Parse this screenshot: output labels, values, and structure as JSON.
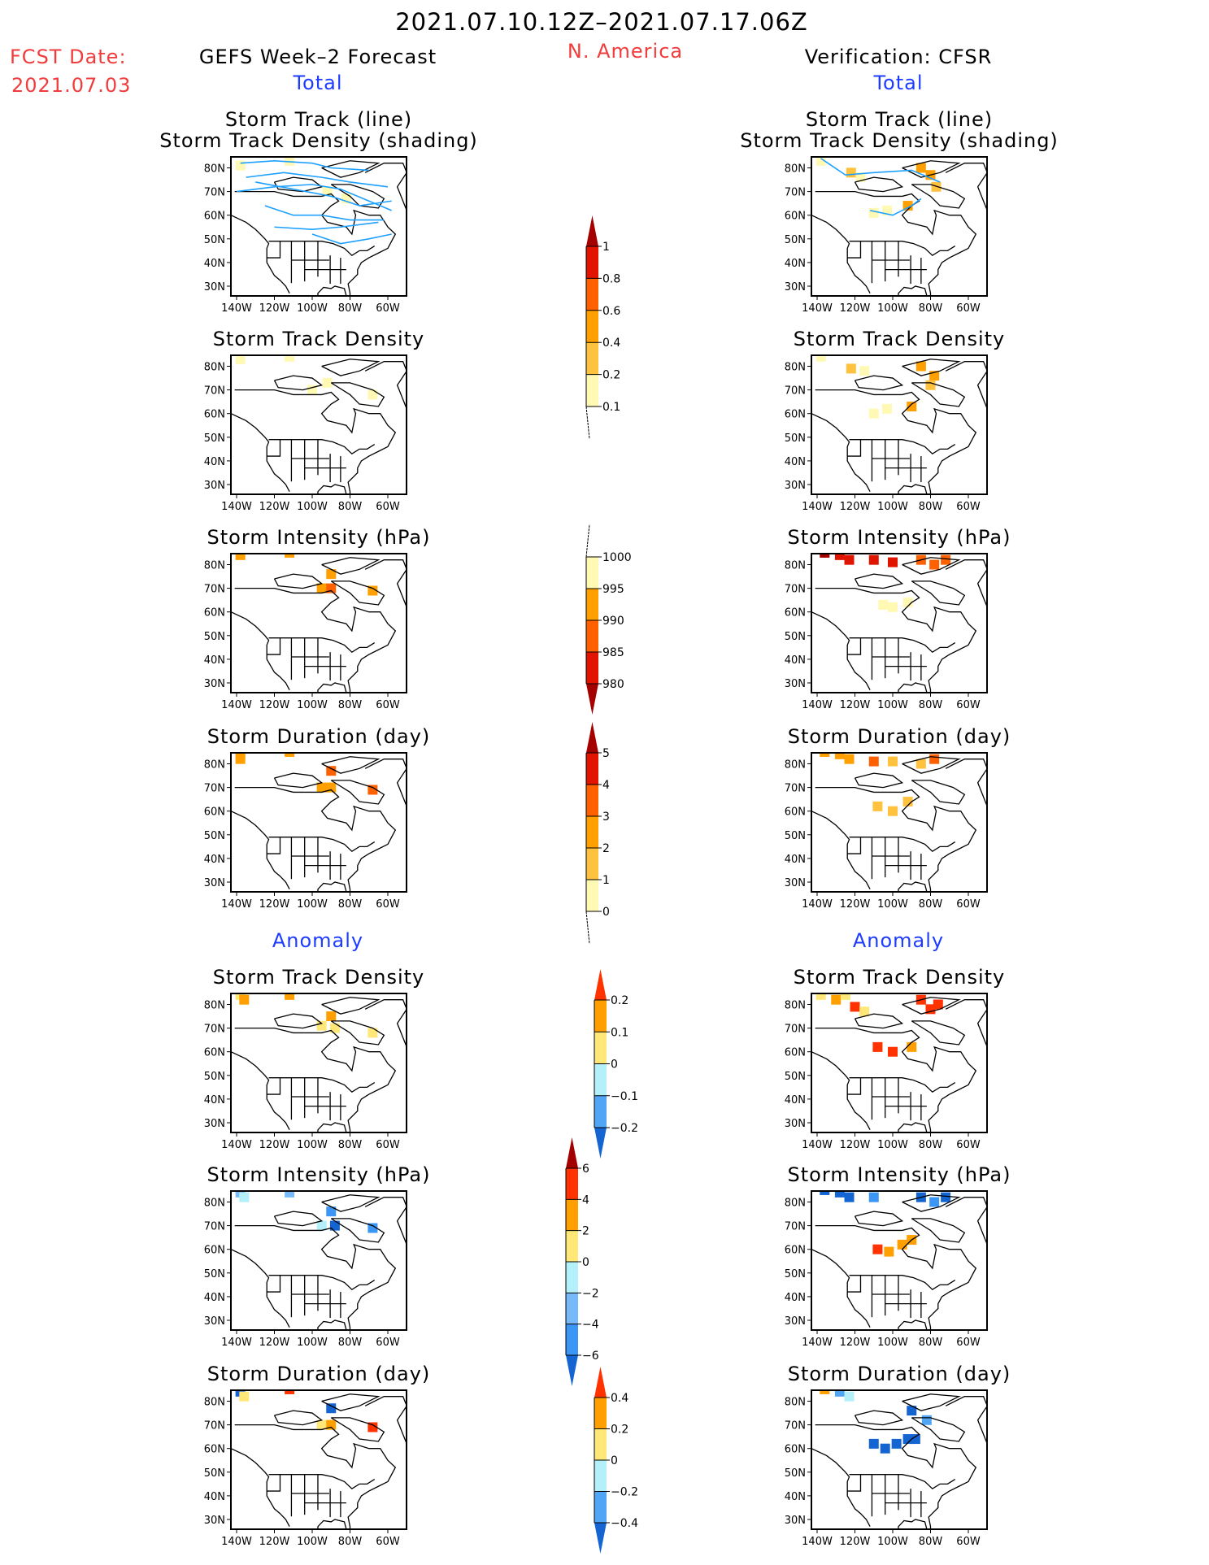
{
  "header": {
    "period": "2021.07.10.12Z–2021.07.17.06Z",
    "fcst_label": "FCST Date:",
    "fcst_date": "2021.07.03",
    "left_title": "GEFS Week–2 Forecast",
    "region": "N. America",
    "right_title": "Verification: CFSR",
    "total": "Total",
    "anomaly": "Anomaly"
  },
  "axes": {
    "lat_ticks": [
      "80N",
      "70N",
      "60N",
      "50N",
      "40N",
      "30N"
    ],
    "lat_values": [
      80,
      70,
      60,
      50,
      40,
      30
    ],
    "lon_ticks": [
      "140W",
      "120W",
      "100W",
      "80W",
      "60W"
    ],
    "lon_values": [
      -140,
      -120,
      -100,
      -80,
      -60
    ]
  },
  "chart_data": {
    "type": "heatmap",
    "colorbars": [
      {
        "name": "total-density",
        "labels": [
          "1",
          "0.8",
          "0.6",
          "0.4",
          "0.2",
          "0.1"
        ],
        "colors": [
          "#a50000",
          "#e11400",
          "#ff6000",
          "#ffa000",
          "#ffc23f",
          "#fff9b4"
        ],
        "top": "tri",
        "bottom": "tail"
      },
      {
        "name": "intensity",
        "labels": [
          "1000",
          "995",
          "990",
          "985",
          "980"
        ],
        "colors": [
          "#fff9b4",
          "#ffa000",
          "#ff6000",
          "#e11400",
          "#a50000"
        ],
        "top": "tail",
        "bottom": "tri"
      },
      {
        "name": "duration",
        "labels": [
          "5",
          "4",
          "3",
          "2",
          "1",
          "0"
        ],
        "colors": [
          "#a50000",
          "#e11400",
          "#ff6000",
          "#ffa000",
          "#ffc23f",
          "#fff9b4"
        ],
        "top": "tri",
        "bottom": "tail"
      },
      {
        "name": "anom-density",
        "labels": [
          "0.2",
          "0.1",
          "0",
          "−0.1",
          "−0.2"
        ],
        "colors": [
          "#ff3200",
          "#ffa000",
          "#ffe878",
          "#b4f0fa",
          "#50a5f5",
          "#1464d2"
        ],
        "top": "tri",
        "bottom": "tri"
      },
      {
        "name": "anom-intensity",
        "labels": [
          "6",
          "4",
          "2",
          "0",
          "−2",
          "−4",
          "−6"
        ],
        "colors": [
          "#a50000",
          "#ff3200",
          "#ffa000",
          "#ffe878",
          "#b4f0fa",
          "#78b9fa",
          "#3c96f5",
          "#1464d2"
        ],
        "top": "tri",
        "bottom": "tri"
      },
      {
        "name": "anom-duration",
        "labels": [
          "0.4",
          "0.2",
          "0",
          "−0.2",
          "−0.4"
        ],
        "colors": [
          "#ff3200",
          "#ffa000",
          "#ffe878",
          "#b4f0fa",
          "#50a5f5",
          "#1464d2"
        ],
        "top": "tri",
        "bottom": "tri"
      }
    ],
    "panels": [
      {
        "title": [
          "Storm Track (line)",
          "Storm Track Density (shading)"
        ],
        "scale": 0,
        "left": {
          "cells": [
            [
              -138,
              81,
              5
            ],
            [
              -112,
              83,
              5
            ],
            [
              -92,
              70,
              5
            ],
            [
              -82,
              67,
              5
            ]
          ],
          "tracks": [
            [
              [
                -138,
                82
              ],
              [
                -120,
                83
              ],
              [
                -100,
                82
              ],
              [
                -90,
                80
              ],
              [
                -70,
                79
              ]
            ],
            [
              [
                -140,
                70
              ],
              [
                -120,
                72
              ],
              [
                -100,
                73
              ],
              [
                -85,
                71
              ],
              [
                -70,
                66
              ],
              [
                -58,
                62
              ]
            ],
            [
              [
                -135,
                76
              ],
              [
                -115,
                78
              ],
              [
                -95,
                76
              ],
              [
                -80,
                74
              ],
              [
                -60,
                72
              ]
            ],
            [
              [
                -125,
                64
              ],
              [
                -110,
                60
              ],
              [
                -95,
                60
              ],
              [
                -80,
                58
              ],
              [
                -62,
                58
              ]
            ],
            [
              [
                -120,
                55
              ],
              [
                -100,
                54
              ],
              [
                -85,
                55
              ],
              [
                -65,
                57
              ]
            ],
            [
              [
                -130,
                74
              ],
              [
                -110,
                71
              ],
              [
                -90,
                68
              ],
              [
                -75,
                64
              ],
              [
                -58,
                66
              ]
            ],
            [
              [
                -100,
                52
              ],
              [
                -85,
                48
              ],
              [
                -70,
                50
              ],
              [
                -58,
                52
              ]
            ]
          ]
        },
        "right": {
          "cells": [
            [
              -138,
              83,
              5
            ],
            [
              -122,
              78,
              4
            ],
            [
              -117,
              76,
              5
            ],
            [
              -85,
              80,
              3
            ],
            [
              -80,
              77,
              3
            ],
            [
              -77,
              72,
              4
            ],
            [
              -92,
              64,
              3
            ],
            [
              -103,
              62,
              5
            ],
            [
              -110,
              61,
              5
            ]
          ],
          "tracks": [
            [
              [
                -138,
                84
              ],
              [
                -125,
                77
              ],
              [
                -110,
                78
              ],
              [
                -90,
                79
              ],
              [
                -75,
                74
              ]
            ],
            [
              [
                -112,
                62
              ],
              [
                -100,
                60
              ],
              [
                -90,
                64
              ],
              [
                -85,
                67
              ]
            ]
          ]
        }
      },
      {
        "title": [
          "Storm Track Density"
        ],
        "scale": 0,
        "left": {
          "cells": [
            [
              -138,
              83,
              5
            ],
            [
              -112,
              84,
              5
            ],
            [
              -92,
              73,
              5
            ],
            [
              -68,
              68,
              5
            ],
            [
              -100,
              70,
              5
            ]
          ]
        },
        "right": {
          "cells": [
            [
              -138,
              84,
              5
            ],
            [
              -122,
              79,
              4
            ],
            [
              -115,
              78,
              5
            ],
            [
              -85,
              80,
              3
            ],
            [
              -78,
              76,
              3
            ],
            [
              -80,
              72,
              4
            ],
            [
              -90,
              63,
              3
            ],
            [
              -103,
              62,
              5
            ],
            [
              -110,
              60,
              5
            ]
          ]
        }
      },
      {
        "title": [
          "Storm Intensity (hPa)"
        ],
        "scale": 1,
        "left": {
          "cells": [
            [
              -138,
              84,
              1
            ],
            [
              -112,
              85,
              1
            ],
            [
              -90,
              76,
              1
            ],
            [
              -95,
              70,
              1
            ],
            [
              -90,
              70,
              2
            ],
            [
              -68,
              69,
              1
            ]
          ]
        },
        "right": {
          "cells": [
            [
              -136,
              85,
              4
            ],
            [
              -128,
              84,
              3
            ],
            [
              -123,
              82,
              3
            ],
            [
              -110,
              82,
              3
            ],
            [
              -100,
              81,
              3
            ],
            [
              -85,
              82,
              2
            ],
            [
              -78,
              80,
              2
            ],
            [
              -72,
              82,
              2
            ],
            [
              -105,
              63,
              0
            ],
            [
              -100,
              62,
              0
            ],
            [
              -92,
              64,
              0
            ]
          ]
        }
      },
      {
        "title": [
          "Storm Duration (day)"
        ],
        "scale": 2,
        "left": {
          "cells": [
            [
              -138,
              84,
              3
            ],
            [
              -138,
              82,
              3
            ],
            [
              -112,
              85,
              3
            ],
            [
              -90,
              77,
              2
            ],
            [
              -95,
              70,
              3
            ],
            [
              -90,
              70,
              3
            ],
            [
              -68,
              69,
              2
            ]
          ]
        },
        "right": {
          "cells": [
            [
              -136,
              85,
              3
            ],
            [
              -128,
              84,
              3
            ],
            [
              -123,
              82,
              3
            ],
            [
              -110,
              81,
              2
            ],
            [
              -100,
              81,
              4
            ],
            [
              -85,
              80,
              4
            ],
            [
              -78,
              82,
              2
            ],
            [
              -108,
              62,
              4
            ],
            [
              -100,
              60,
              4
            ],
            [
              -92,
              64,
              4
            ]
          ]
        }
      },
      {
        "title": [
          "Storm Track Density"
        ],
        "scale": 3,
        "left": {
          "cells": [
            [
              -138,
              84,
              2
            ],
            [
              -136,
              82,
              1
            ],
            [
              -112,
              84,
              1
            ],
            [
              -95,
              71,
              2
            ],
            [
              -90,
              75,
              1
            ],
            [
              -88,
              70,
              2
            ],
            [
              -68,
              68,
              2
            ]
          ]
        },
        "right": {
          "cells": [
            [
              -138,
              84,
              2
            ],
            [
              -130,
              82,
              1
            ],
            [
              -120,
              79,
              0
            ],
            [
              -115,
              77,
              2
            ],
            [
              -85,
              82,
              0
            ],
            [
              -80,
              78,
              0
            ],
            [
              -76,
              80,
              0
            ],
            [
              -90,
              62,
              1
            ],
            [
              -100,
              60,
              0
            ],
            [
              -108,
              62,
              0
            ],
            [
              -125,
              84,
              2
            ]
          ]
        }
      },
      {
        "title": [
          "Storm Intensity (hPa)"
        ],
        "scale": 4,
        "left": {
          "cells": [
            [
              -138,
              84,
              5
            ],
            [
              -136,
              82,
              4
            ],
            [
              -112,
              84,
              5
            ],
            [
              -90,
              76,
              6
            ],
            [
              -95,
              70,
              4
            ],
            [
              -88,
              70,
              7
            ],
            [
              -68,
              69,
              6
            ]
          ]
        },
        "right": {
          "cells": [
            [
              -136,
              85,
              7
            ],
            [
              -128,
              84,
              7
            ],
            [
              -123,
              82,
              7
            ],
            [
              -110,
              82,
              6
            ],
            [
              -85,
              82,
              7
            ],
            [
              -78,
              80,
              6
            ],
            [
              -72,
              82,
              7
            ],
            [
              -108,
              60,
              1
            ],
            [
              -102,
              59,
              2
            ],
            [
              -95,
              62,
              2
            ],
            [
              -90,
              64,
              2
            ]
          ]
        }
      },
      {
        "title": [
          "Storm Duration (day)"
        ],
        "scale": 5,
        "left": {
          "cells": [
            [
              -138,
              84,
              5
            ],
            [
              -136,
              82,
              2
            ],
            [
              -112,
              85,
              0
            ],
            [
              -90,
              77,
              5
            ],
            [
              -95,
              70,
              2
            ],
            [
              -90,
              70,
              1
            ],
            [
              -68,
              69,
              0
            ]
          ]
        },
        "right": {
          "cells": [
            [
              -136,
              85,
              1
            ],
            [
              -128,
              84,
              4
            ],
            [
              -123,
              82,
              3
            ],
            [
              -90,
              76,
              5
            ],
            [
              -82,
              72,
              4
            ],
            [
              -110,
              62,
              5
            ],
            [
              -104,
              60,
              5
            ],
            [
              -98,
              62,
              5
            ],
            [
              -92,
              64,
              5
            ],
            [
              -88,
              64,
              5
            ]
          ]
        }
      }
    ]
  }
}
